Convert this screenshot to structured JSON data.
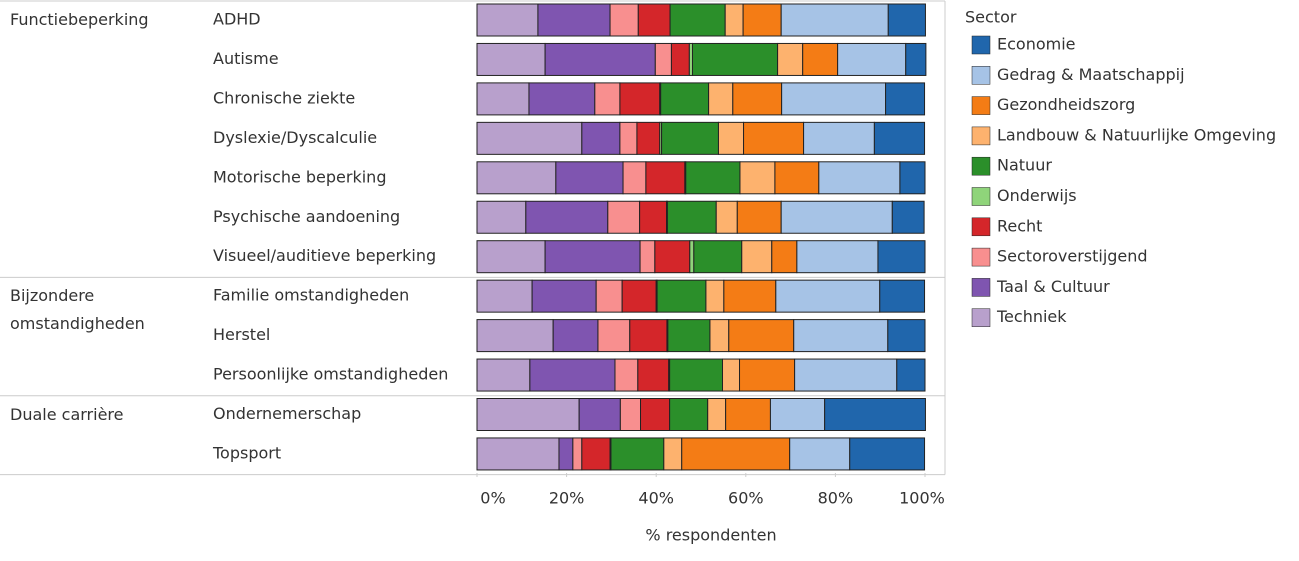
{
  "chart_data": {
    "type": "stacked-bar-horizontal",
    "x_label": "% respondenten",
    "legend_title": "Sector",
    "xlim": [
      0,
      100
    ],
    "xticks": [
      {
        "value": 0,
        "label": "0%"
      },
      {
        "value": 20,
        "label": "20%"
      },
      {
        "value": 40,
        "label": "40%"
      },
      {
        "value": 60,
        "label": "60%"
      },
      {
        "value": 80,
        "label": "80%"
      },
      {
        "value": 100,
        "label": "100%"
      }
    ],
    "groups": [
      {
        "name": "Functiebeperking",
        "categories": [
          "ADHD",
          "Autisme",
          "Chronische ziekte",
          "Dyslexie/Dyscalculie",
          "Motorische beperking",
          "Psychische aandoening",
          "Visueel/auditieve beperking"
        ]
      },
      {
        "name": "Bijzondere omstandigheden",
        "categories": [
          "Familie omstandigheden",
          "Herstel",
          "Persoonlijke omstandigheden"
        ]
      },
      {
        "name": "Duale carrière",
        "categories": [
          "Ondernemerschap",
          "Topsport"
        ]
      }
    ],
    "series": [
      {
        "name": "Economie",
        "color": "#2066ac",
        "values": [
          8.3,
          4.5,
          8.7,
          11.2,
          5.6,
          7.1,
          10.5,
          10.0,
          8.3,
          6.3,
          22.5,
          16.7
        ]
      },
      {
        "name": "Gedrag & Maatschappij",
        "color": "#a6c3e6",
        "values": [
          23.9,
          15.2,
          23.2,
          15.8,
          18.1,
          24.8,
          18.1,
          23.2,
          21.0,
          22.8,
          12.1,
          13.4
        ]
      },
      {
        "name": "Gezondheidszorg",
        "color": "#f47c15",
        "values": [
          8.5,
          7.8,
          10.9,
          13.4,
          9.8,
          9.8,
          5.6,
          11.6,
          14.5,
          12.3,
          10.0,
          24.1
        ]
      },
      {
        "name": "Landbouw & Natuurlijke Omgeving",
        "color": "#fdb26e",
        "values": [
          4.0,
          5.6,
          5.4,
          5.6,
          7.8,
          4.7,
          6.7,
          4.0,
          4.2,
          3.8,
          4.0,
          4.0
        ]
      },
      {
        "name": "Natuur",
        "color": "#2b8f2a",
        "values": [
          12.3,
          19.0,
          10.7,
          12.7,
          12.1,
          10.9,
          10.7,
          10.9,
          9.4,
          11.8,
          8.5,
          11.8
        ]
      },
      {
        "name": "Onderwijs",
        "color": "#8fd47a",
        "values": [
          0,
          0.7,
          0.2,
          0.4,
          0.2,
          0.2,
          0.9,
          0.2,
          0.2,
          0.2,
          0,
          0.2
        ]
      },
      {
        "name": "Recht",
        "color": "#d4262a",
        "values": [
          7.1,
          4.0,
          8.9,
          5.1,
          8.7,
          6.0,
          7.8,
          7.6,
          8.3,
          6.9,
          6.5,
          6.3
        ]
      },
      {
        "name": "Sectoroverstijgend",
        "color": "#f88f8f",
        "values": [
          6.3,
          3.6,
          5.6,
          3.8,
          5.1,
          7.1,
          3.3,
          5.8,
          7.1,
          5.1,
          4.5,
          2.0
        ]
      },
      {
        "name": "Taal & Cultuur",
        "color": "#7f55b0",
        "values": [
          16.1,
          24.6,
          14.7,
          8.5,
          15.0,
          18.3,
          21.2,
          14.3,
          10.0,
          19.0,
          9.2,
          3.1
        ]
      },
      {
        "name": "Techniek",
        "color": "#b8a0cc",
        "values": [
          13.6,
          15.2,
          11.6,
          23.4,
          17.6,
          10.9,
          15.2,
          12.3,
          17.0,
          11.8,
          22.8,
          18.3
        ]
      }
    ]
  }
}
